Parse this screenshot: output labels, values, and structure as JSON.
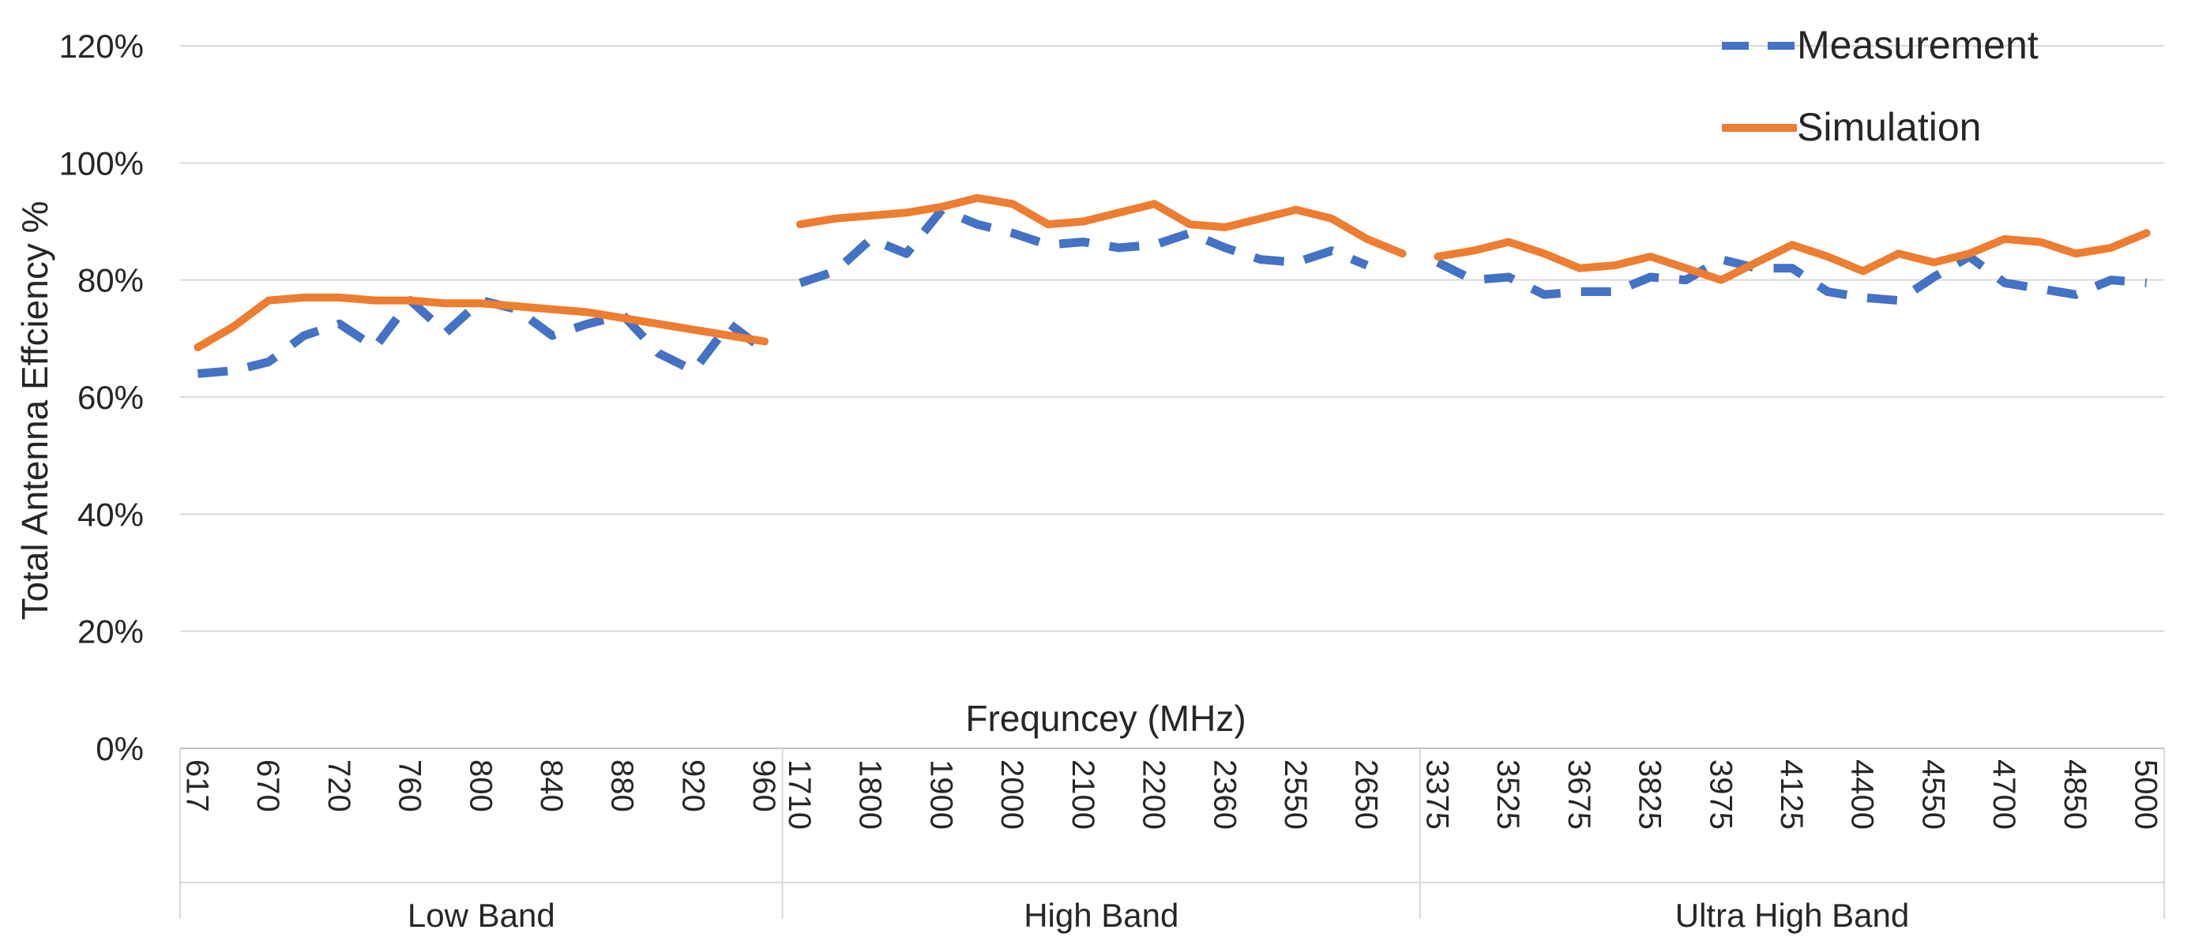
{
  "chart_data": {
    "type": "line",
    "title": "",
    "xlabel": "Frequncey (MHz)",
    "ylabel": "Total Antenna Effciency %",
    "ylim": [
      0,
      120
    ],
    "yticks": [
      "0%",
      "20%",
      "40%",
      "60%",
      "80%",
      "100%",
      "120%"
    ],
    "grid": true,
    "legend_position": "top-right",
    "groups": [
      {
        "name": "Low Band",
        "categories": [
          "617",
          "",
          "670",
          "",
          "720",
          "",
          "760",
          "",
          "800",
          "",
          "840",
          "",
          "880",
          "",
          "920",
          "",
          "960"
        ],
        "series": [
          {
            "name": "Measurement",
            "values": [
              64,
              64.5,
              66,
              70.5,
              72.5,
              68.5,
              76.5,
              71,
              76.5,
              75,
              70.5,
              72.5,
              74,
              67.5,
              64.5,
              72.5,
              68
            ]
          },
          {
            "name": "Simulation",
            "values": [
              68.5,
              72,
              76.5,
              77,
              77,
              76.5,
              76.5,
              76,
              76,
              75.5,
              75,
              74.5,
              73.5,
              72.5,
              71.5,
              70.5,
              69.5
            ]
          }
        ]
      },
      {
        "name": "High Band",
        "categories": [
          "1710",
          "",
          "1800",
          "",
          "1900",
          "",
          "2000",
          "",
          "2100",
          "",
          "2200",
          "",
          "2360",
          "",
          "2550",
          "",
          "2650",
          ""
        ],
        "series": [
          {
            "name": "Measurement",
            "values": [
              79.5,
              81.5,
              87,
              84.5,
              92,
              89.5,
              88,
              86,
              86.5,
              85.5,
              86,
              88,
              85.5,
              83.5,
              83,
              85,
              82.5,
              null
            ]
          },
          {
            "name": "Simulation",
            "values": [
              89.5,
              90.5,
              91,
              91.5,
              92.5,
              94,
              93,
              89.5,
              90,
              91.5,
              93,
              89.5,
              89,
              90.5,
              92,
              90.5,
              87,
              84.5
            ]
          }
        ]
      },
      {
        "name": "Ultra High Band",
        "categories": [
          "3375",
          "",
          "3525",
          "",
          "3675",
          "",
          "3825",
          "",
          "3975",
          "",
          "4125",
          "",
          "4400",
          "",
          "4550",
          "",
          "4700",
          "",
          "4850",
          "",
          "5000"
        ],
        "series": [
          {
            "name": "Measurement",
            "values": [
              83,
              80,
              80.5,
              77.5,
              78,
              78,
              80.5,
              80,
              83.5,
              82,
              82,
              78,
              77,
              76.5,
              80.5,
              84,
              79.5,
              78.5,
              77.5,
              80,
              79.5
            ]
          },
          {
            "name": "Simulation",
            "values": [
              84,
              85,
              86.5,
              84.5,
              82,
              82.5,
              84,
              82,
              80,
              83,
              86,
              84,
              81.5,
              84.5,
              83,
              84.5,
              87,
              86.5,
              84.5,
              85.5,
              88
            ]
          }
        ]
      }
    ],
    "legend": [
      {
        "name": "Measurement",
        "style": "dashed",
        "color": "#4472C4"
      },
      {
        "name": "Simulation",
        "style": "solid",
        "color": "#ED7D31"
      }
    ]
  }
}
